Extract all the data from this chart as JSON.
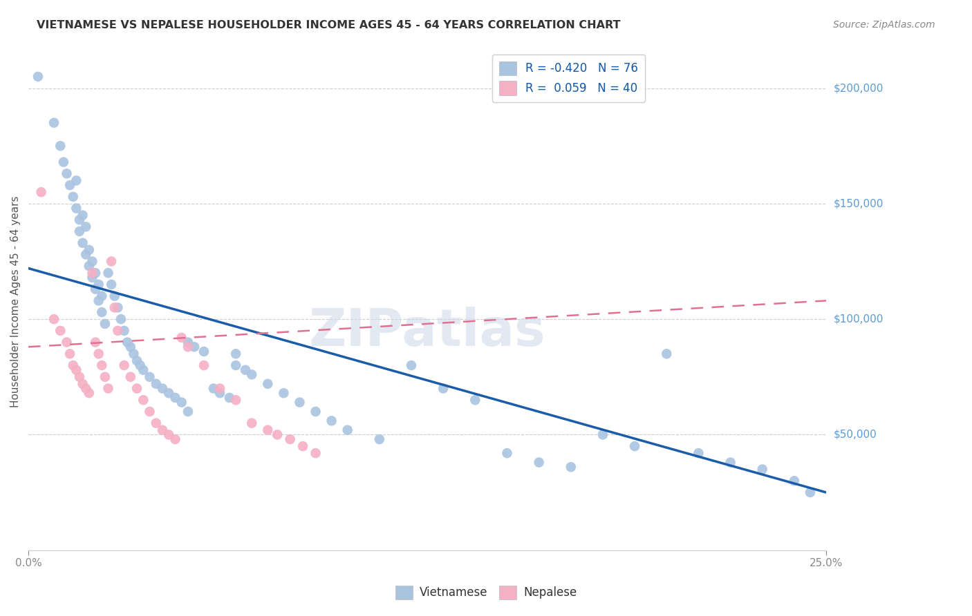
{
  "title": "VIETNAMESE VS NEPALESE HOUSEHOLDER INCOME AGES 45 - 64 YEARS CORRELATION CHART",
  "source": "Source: ZipAtlas.com",
  "ylabel": "Householder Income Ages 45 - 64 years",
  "xlim": [
    0.0,
    0.25
  ],
  "ylim": [
    0,
    215000
  ],
  "viet_R": -0.42,
  "viet_N": 76,
  "nepal_R": 0.059,
  "nepal_N": 40,
  "viet_color": "#aac4e0",
  "viet_line_color": "#1a5ca8",
  "nepal_color": "#f4b0c4",
  "nepal_line_color": "#e07090",
  "legend_label_color": "#1a5ca8",
  "right_axis_color": "#5b9bd5",
  "watermark_color": "#ccd8e8",
  "viet_x": [
    0.003,
    0.008,
    0.01,
    0.011,
    0.012,
    0.013,
    0.014,
    0.015,
    0.015,
    0.016,
    0.016,
    0.017,
    0.017,
    0.018,
    0.018,
    0.019,
    0.019,
    0.02,
    0.02,
    0.021,
    0.021,
    0.022,
    0.022,
    0.023,
    0.023,
    0.024,
    0.025,
    0.026,
    0.027,
    0.028,
    0.029,
    0.03,
    0.031,
    0.032,
    0.033,
    0.034,
    0.035,
    0.036,
    0.038,
    0.04,
    0.042,
    0.044,
    0.046,
    0.048,
    0.05,
    0.052,
    0.055,
    0.058,
    0.06,
    0.063,
    0.065,
    0.068,
    0.07,
    0.075,
    0.08,
    0.085,
    0.09,
    0.095,
    0.1,
    0.11,
    0.12,
    0.13,
    0.14,
    0.15,
    0.16,
    0.17,
    0.18,
    0.19,
    0.2,
    0.21,
    0.22,
    0.23,
    0.24,
    0.245,
    0.05,
    0.065
  ],
  "viet_y": [
    205000,
    185000,
    175000,
    168000,
    163000,
    158000,
    153000,
    148000,
    160000,
    143000,
    138000,
    133000,
    145000,
    128000,
    140000,
    123000,
    130000,
    118000,
    125000,
    113000,
    120000,
    108000,
    115000,
    103000,
    110000,
    98000,
    120000,
    115000,
    110000,
    105000,
    100000,
    95000,
    90000,
    88000,
    85000,
    82000,
    80000,
    78000,
    75000,
    72000,
    70000,
    68000,
    66000,
    64000,
    90000,
    88000,
    86000,
    70000,
    68000,
    66000,
    80000,
    78000,
    76000,
    72000,
    68000,
    64000,
    60000,
    56000,
    52000,
    48000,
    80000,
    70000,
    65000,
    42000,
    38000,
    36000,
    50000,
    45000,
    85000,
    42000,
    38000,
    35000,
    30000,
    25000,
    60000,
    85000
  ],
  "nepal_x": [
    0.004,
    0.008,
    0.01,
    0.012,
    0.013,
    0.014,
    0.015,
    0.016,
    0.017,
    0.018,
    0.019,
    0.02,
    0.021,
    0.022,
    0.023,
    0.024,
    0.025,
    0.026,
    0.027,
    0.028,
    0.03,
    0.032,
    0.034,
    0.036,
    0.038,
    0.04,
    0.042,
    0.044,
    0.046,
    0.048,
    0.05,
    0.055,
    0.06,
    0.065,
    0.07,
    0.075,
    0.078,
    0.082,
    0.086,
    0.09
  ],
  "nepal_y": [
    155000,
    100000,
    95000,
    90000,
    85000,
    80000,
    78000,
    75000,
    72000,
    70000,
    68000,
    120000,
    90000,
    85000,
    80000,
    75000,
    70000,
    125000,
    105000,
    95000,
    80000,
    75000,
    70000,
    65000,
    60000,
    55000,
    52000,
    50000,
    48000,
    92000,
    88000,
    80000,
    70000,
    65000,
    55000,
    52000,
    50000,
    48000,
    45000,
    42000
  ],
  "viet_line_x": [
    0.0,
    0.25
  ],
  "viet_line_y": [
    122000,
    25000
  ],
  "nepal_line_x": [
    0.0,
    0.25
  ],
  "nepal_line_y": [
    88000,
    108000
  ]
}
